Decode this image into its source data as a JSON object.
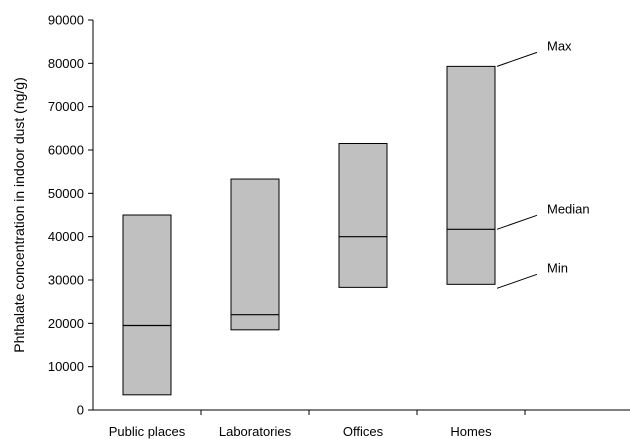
{
  "chart_data": {
    "type": "box",
    "ylabel": "Phthalate concentration in indoor dust (ng/g)",
    "ylim": [
      0,
      90000
    ],
    "ytick_step": 10000,
    "yticks": [
      "0",
      "10000",
      "20000",
      "30000",
      "40000",
      "50000",
      "60000",
      "70000",
      "80000",
      "90000"
    ],
    "categories": [
      "Public places",
      "Laboratories",
      "Offices",
      "Homes"
    ],
    "boxes": [
      {
        "category": "Public places",
        "min": 3500,
        "median": 19500,
        "max": 45000
      },
      {
        "category": "Laboratories",
        "min": 18500,
        "median": 22000,
        "max": 53300
      },
      {
        "category": "Offices",
        "min": 28300,
        "median": 40000,
        "max": 61500
      },
      {
        "category": "Homes",
        "min": 29000,
        "median": 41700,
        "max": 79300
      }
    ],
    "annotations": [
      {
        "label": "Max",
        "points_to": "Homes.max"
      },
      {
        "label": "Median",
        "points_to": "Homes.median"
      },
      {
        "label": "Min",
        "points_to": "Homes.min"
      }
    ],
    "box_fill": "#c0c0c0",
    "grid": false
  }
}
